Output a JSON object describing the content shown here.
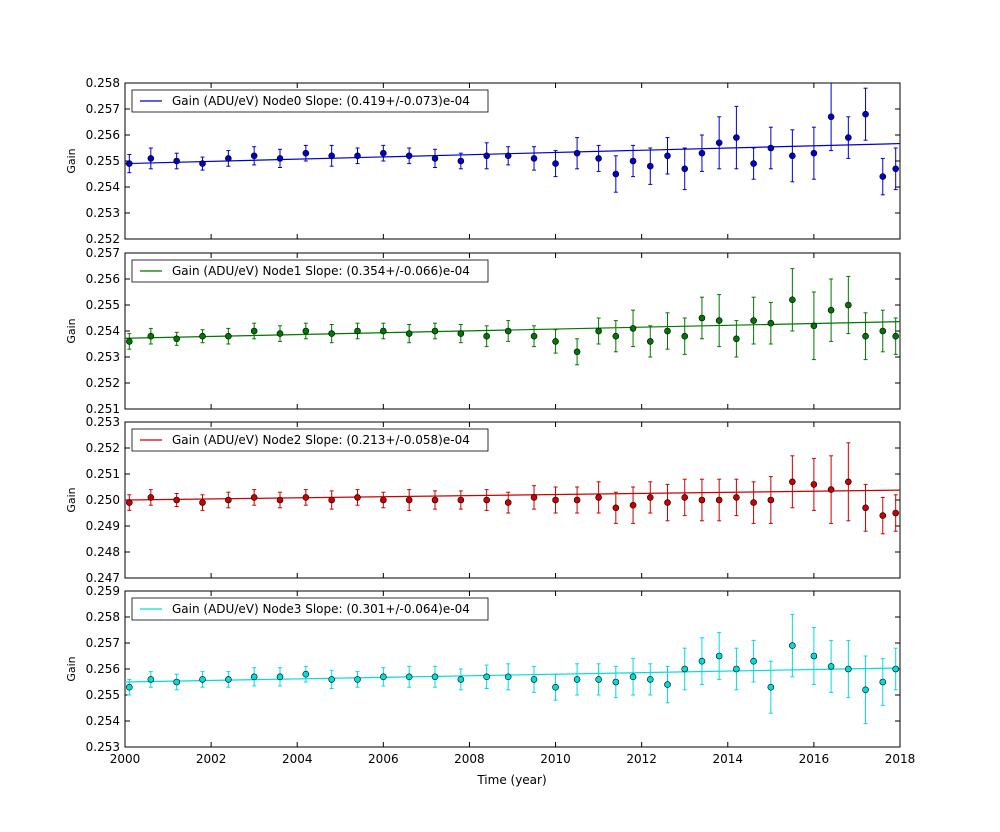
{
  "x_axis": {
    "label": "Time (year)",
    "lim": [
      2000,
      2018
    ],
    "ticks": [
      "2000",
      "2002",
      "2004",
      "2006",
      "2008",
      "2010",
      "2012",
      "2014",
      "2016",
      "2018"
    ]
  },
  "chart_data": [
    {
      "type": "scatter",
      "panel": "node0",
      "color": "#0000cc",
      "ylabel": "Gain",
      "ylim": [
        0.252,
        0.258
      ],
      "yticks": [
        "0.252",
        "0.253",
        "0.254",
        "0.255",
        "0.256",
        "0.257",
        "0.258"
      ],
      "legend": "Gain (ADU/eV) Node0 Slope: (0.419+/-0.073)e-04",
      "fit": {
        "x": [
          2000,
          2018
        ],
        "y": [
          0.2549,
          0.25567
        ]
      },
      "series": [
        {
          "name": "Gain (ADU/eV) Node0 Slope: (0.419+/-0.073)e-04",
          "x": [
            2000.1,
            2000.6,
            2001.2,
            2001.8,
            2002.4,
            2003.0,
            2003.6,
            2004.2,
            2004.8,
            2005.4,
            2006.0,
            2006.6,
            2007.2,
            2007.8,
            2008.4,
            2008.9,
            2009.5,
            2010.0,
            2010.5,
            2011.0,
            2011.4,
            2011.8,
            2012.2,
            2012.6,
            2013.0,
            2013.4,
            2013.8,
            2014.2,
            2014.6,
            2015.0,
            2015.5,
            2016.0,
            2016.4,
            2016.8,
            2017.2,
            2017.6,
            2017.9
          ],
          "y": [
            0.2549,
            0.2551,
            0.255,
            0.2549,
            0.2551,
            0.2552,
            0.2551,
            0.2553,
            0.2552,
            0.2552,
            0.2553,
            0.2552,
            0.2551,
            0.255,
            0.2552,
            0.2552,
            0.2551,
            0.2549,
            0.2553,
            0.2551,
            0.2545,
            0.255,
            0.2548,
            0.2552,
            0.2547,
            0.2553,
            0.2557,
            0.2559,
            0.2549,
            0.2555,
            0.2552,
            0.2553,
            0.2567,
            0.2559,
            0.2568,
            0.2544,
            0.2547
          ],
          "err": [
            0.00035,
            0.0004,
            0.0003,
            0.00025,
            0.0003,
            0.00035,
            0.00035,
            0.0003,
            0.0004,
            0.0003,
            0.0003,
            0.0003,
            0.00035,
            0.0003,
            0.0005,
            0.00035,
            0.00045,
            0.0005,
            0.0006,
            0.0005,
            0.0007,
            0.0006,
            0.0007,
            0.0007,
            0.0008,
            0.0007,
            0.001,
            0.0012,
            0.0006,
            0.0008,
            0.001,
            0.001,
            0.0013,
            0.0008,
            0.001,
            0.0007,
            0.0008
          ]
        }
      ]
    },
    {
      "type": "scatter",
      "panel": "node1",
      "color": "#007700",
      "ylabel": "Gain",
      "ylim": [
        0.251,
        0.257
      ],
      "yticks": [
        "0.251",
        "0.252",
        "0.253",
        "0.254",
        "0.255",
        "0.256",
        "0.257"
      ],
      "legend": "Gain (ADU/eV) Node1 Slope: (0.354+/-0.066)e-04",
      "fit": {
        "x": [
          2000,
          2018
        ],
        "y": [
          0.25372,
          0.25436
        ]
      },
      "series": [
        {
          "name": "Gain (ADU/eV) Node1 Slope: (0.354+/-0.066)e-04",
          "x": [
            2000.1,
            2000.6,
            2001.2,
            2001.8,
            2002.4,
            2003.0,
            2003.6,
            2004.2,
            2004.8,
            2005.4,
            2006.0,
            2006.6,
            2007.2,
            2007.8,
            2008.4,
            2008.9,
            2009.5,
            2010.0,
            2010.5,
            2011.0,
            2011.4,
            2011.8,
            2012.2,
            2012.6,
            2013.0,
            2013.4,
            2013.8,
            2014.2,
            2014.6,
            2015.0,
            2015.5,
            2016.0,
            2016.4,
            2016.8,
            2017.2,
            2017.6,
            2017.9
          ],
          "y": [
            0.2536,
            0.2538,
            0.2537,
            0.2538,
            0.2538,
            0.254,
            0.2539,
            0.254,
            0.2539,
            0.254,
            0.254,
            0.2539,
            0.254,
            0.2539,
            0.2538,
            0.254,
            0.2538,
            0.2536,
            0.2532,
            0.254,
            0.2538,
            0.2541,
            0.2536,
            0.254,
            0.2538,
            0.2545,
            0.2544,
            0.2537,
            0.2544,
            0.2543,
            0.2552,
            0.2542,
            0.2548,
            0.255,
            0.2538,
            0.254,
            0.2538
          ],
          "err": [
            0.0003,
            0.0003,
            0.00025,
            0.00025,
            0.0003,
            0.0003,
            0.0003,
            0.0003,
            0.00035,
            0.0003,
            0.0003,
            0.00035,
            0.0003,
            0.00035,
            0.0004,
            0.0004,
            0.0004,
            0.00045,
            0.0005,
            0.0005,
            0.0006,
            0.0007,
            0.0006,
            0.0007,
            0.0007,
            0.0008,
            0.001,
            0.0007,
            0.0009,
            0.0008,
            0.0012,
            0.0013,
            0.0012,
            0.0011,
            0.0009,
            0.0008,
            0.0007
          ]
        }
      ]
    },
    {
      "type": "scatter",
      "panel": "node2",
      "color": "#cc0000",
      "ylabel": "Gain",
      "ylim": [
        0.247,
        0.253
      ],
      "yticks": [
        "0.247",
        "0.248",
        "0.249",
        "0.250",
        "0.251",
        "0.252",
        "0.253"
      ],
      "legend": "Gain (ADU/eV) Node2 Slope: (0.213+/-0.058)e-04",
      "fit": {
        "x": [
          2000,
          2018
        ],
        "y": [
          0.25,
          0.25038
        ]
      },
      "series": [
        {
          "name": "Gain (ADU/eV) Node2 Slope: (0.213+/-0.058)e-04",
          "x": [
            2000.1,
            2000.6,
            2001.2,
            2001.8,
            2002.4,
            2003.0,
            2003.6,
            2004.2,
            2004.8,
            2005.4,
            2006.0,
            2006.6,
            2007.2,
            2007.8,
            2008.4,
            2008.9,
            2009.5,
            2010.0,
            2010.5,
            2011.0,
            2011.4,
            2011.8,
            2012.2,
            2012.6,
            2013.0,
            2013.4,
            2013.8,
            2014.2,
            2014.6,
            2015.0,
            2015.5,
            2016.0,
            2016.4,
            2016.8,
            2017.2,
            2017.6,
            2017.9
          ],
          "y": [
            0.2499,
            0.2501,
            0.25,
            0.2499,
            0.25,
            0.2501,
            0.25,
            0.2501,
            0.25,
            0.2501,
            0.25,
            0.25,
            0.25,
            0.25,
            0.25,
            0.2499,
            0.2501,
            0.25,
            0.25,
            0.2501,
            0.2497,
            0.2498,
            0.2501,
            0.2499,
            0.2501,
            0.25,
            0.25,
            0.2501,
            0.2499,
            0.25,
            0.2507,
            0.2506,
            0.2504,
            0.2507,
            0.2497,
            0.2494,
            0.2495
          ],
          "err": [
            0.0003,
            0.0003,
            0.00025,
            0.0003,
            0.0003,
            0.0003,
            0.0003,
            0.0003,
            0.00035,
            0.0003,
            0.0003,
            0.0004,
            0.00035,
            0.00035,
            0.0004,
            0.0004,
            0.00045,
            0.0005,
            0.0005,
            0.0006,
            0.0006,
            0.0007,
            0.0006,
            0.0007,
            0.0007,
            0.0008,
            0.0008,
            0.0007,
            0.0008,
            0.0009,
            0.001,
            0.001,
            0.0013,
            0.0015,
            0.0009,
            0.0007,
            0.0007
          ]
        }
      ]
    },
    {
      "type": "scatter",
      "panel": "node3",
      "color": "#00dddd",
      "ylabel": "Gain",
      "ylim": [
        0.253,
        0.259
      ],
      "yticks": [
        "0.253",
        "0.254",
        "0.255",
        "0.256",
        "0.257",
        "0.258",
        "0.259"
      ],
      "legend": "Gain (ADU/eV) Node3 Slope: (0.301+/-0.064)e-04",
      "fit": {
        "x": [
          2000,
          2018
        ],
        "y": [
          0.2555,
          0.25604
        ]
      },
      "series": [
        {
          "name": "Gain (ADU/eV) Node3 Slope: (0.301+/-0.064)e-04",
          "x": [
            2000.1,
            2000.6,
            2001.2,
            2001.8,
            2002.4,
            2003.0,
            2003.6,
            2004.2,
            2004.8,
            2005.4,
            2006.0,
            2006.6,
            2007.2,
            2007.8,
            2008.4,
            2008.9,
            2009.5,
            2010.0,
            2010.5,
            2011.0,
            2011.4,
            2011.8,
            2012.2,
            2012.6,
            2013.0,
            2013.4,
            2013.8,
            2014.2,
            2014.6,
            2015.0,
            2015.5,
            2016.0,
            2016.4,
            2016.8,
            2017.2,
            2017.6,
            2017.9
          ],
          "y": [
            0.2553,
            0.2556,
            0.2555,
            0.2556,
            0.2556,
            0.2557,
            0.2557,
            0.2558,
            0.2556,
            0.2556,
            0.2557,
            0.2557,
            0.2557,
            0.2556,
            0.2557,
            0.2557,
            0.2556,
            0.2553,
            0.2556,
            0.2556,
            0.2555,
            0.2557,
            0.2556,
            0.2554,
            0.256,
            0.2563,
            0.2565,
            0.256,
            0.2563,
            0.2553,
            0.2569,
            0.2565,
            0.2561,
            0.256,
            0.2552,
            0.2555,
            0.256
          ],
          "err": [
            0.0003,
            0.0003,
            0.0003,
            0.0003,
            0.0003,
            0.00035,
            0.00035,
            0.0003,
            0.00035,
            0.0003,
            0.00035,
            0.0004,
            0.0004,
            0.0004,
            0.00045,
            0.0005,
            0.0005,
            0.0005,
            0.0006,
            0.0006,
            0.0006,
            0.0007,
            0.0006,
            0.0007,
            0.0008,
            0.0009,
            0.0009,
            0.0008,
            0.0008,
            0.001,
            0.0012,
            0.0011,
            0.001,
            0.0011,
            0.0013,
            0.0009,
            0.0008
          ]
        }
      ]
    }
  ]
}
